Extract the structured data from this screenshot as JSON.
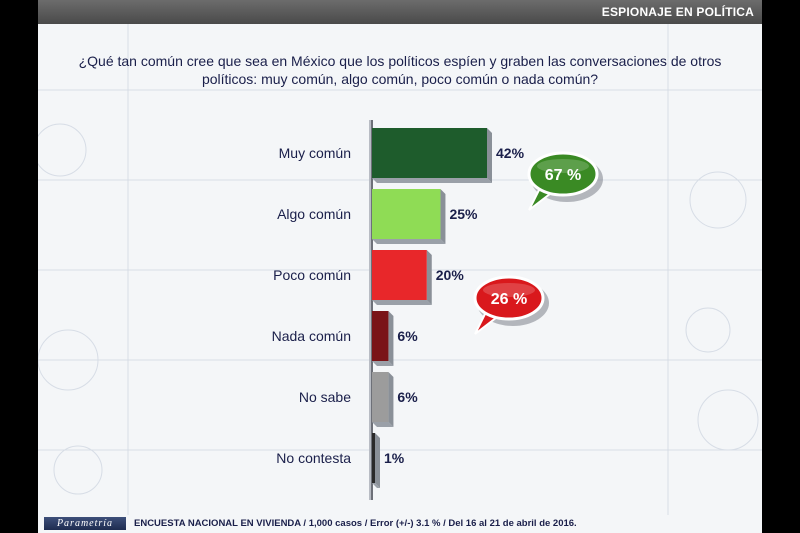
{
  "header": {
    "title": "ESPIONAJE EN POLÍTICA"
  },
  "question": {
    "line1": "¿Qué tan común cree que sea en México que los políticos espíen y graben las conversaciones de otros",
    "line2": "políticos: muy común, algo común, poco común o nada común?"
  },
  "chart_data": {
    "type": "bar",
    "orientation": "horizontal",
    "categories": [
      "Muy común",
      "Algo común",
      "Poco común",
      "Nada común",
      "No sabe",
      "No contesta"
    ],
    "values": [
      42,
      25,
      20,
      6,
      6,
      1
    ],
    "value_labels": [
      "42%",
      "25%",
      "20%",
      "6%",
      "6%",
      "1%"
    ],
    "colors": [
      "#1e5c2c",
      "#8fdc55",
      "#e8272a",
      "#7a1418",
      "#9c9c9c",
      "#2a2a2a"
    ],
    "xlim": [
      0,
      42
    ],
    "grid": false,
    "callouts": [
      {
        "label": "67 %",
        "color": "#3a8a24"
      },
      {
        "label": "26 %",
        "color": "#d9181c"
      }
    ]
  },
  "footer": {
    "logo": "Parametría",
    "note": "ENCUESTA NACIONAL EN VIVIENDA / 1,000 casos / Error (+/-) 3.1 % / Del 16 al 21 de abril de 2016."
  }
}
